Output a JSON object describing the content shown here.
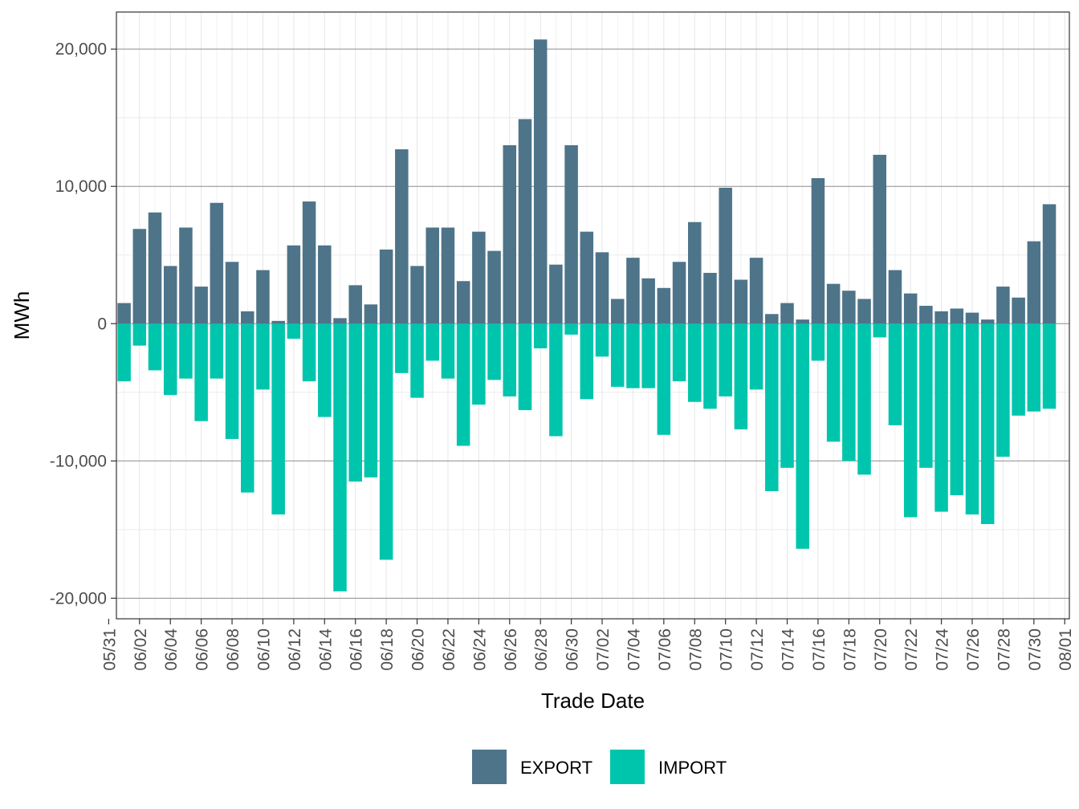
{
  "chart_data": {
    "type": "bar",
    "title": "",
    "xlabel": "Trade Date",
    "ylabel": "MWh",
    "ylim": [
      -21500,
      22700
    ],
    "x_tick_labels": [
      "05/31",
      "06/02",
      "06/04",
      "06/06",
      "06/08",
      "06/10",
      "06/12",
      "06/14",
      "06/16",
      "06/18",
      "06/20",
      "06/22",
      "06/24",
      "06/26",
      "06/28",
      "06/30",
      "07/02",
      "07/04",
      "07/06",
      "07/08",
      "07/10",
      "07/12",
      "07/14",
      "07/16",
      "07/18",
      "07/20",
      "07/22",
      "07/24",
      "07/26",
      "07/28",
      "07/30",
      "08/01"
    ],
    "y_ticks": [
      20000,
      10000,
      0,
      -10000,
      -20000
    ],
    "y_tick_labels": [
      "20,000",
      "10,000",
      "0",
      "-10,000",
      "-20,000"
    ],
    "legend_position": "bottom",
    "categories": [
      "06/01",
      "06/02",
      "06/03",
      "06/04",
      "06/05",
      "06/06",
      "06/07",
      "06/08",
      "06/09",
      "06/10",
      "06/11",
      "06/12",
      "06/13",
      "06/14",
      "06/15",
      "06/16",
      "06/17",
      "06/18",
      "06/19",
      "06/20",
      "06/21",
      "06/22",
      "06/23",
      "06/24",
      "06/25",
      "06/26",
      "06/27",
      "06/28",
      "06/29",
      "06/30",
      "07/01",
      "07/02",
      "07/03",
      "07/04",
      "07/05",
      "07/06",
      "07/07",
      "07/08",
      "07/09",
      "07/10",
      "07/11",
      "07/12",
      "07/13",
      "07/14",
      "07/15",
      "07/16",
      "07/17",
      "07/18",
      "07/19",
      "07/20",
      "07/21",
      "07/22",
      "07/23",
      "07/24",
      "07/25",
      "07/26",
      "07/27",
      "07/28",
      "07/29",
      "07/30",
      "07/31"
    ],
    "series": [
      {
        "name": "EXPORT",
        "color": "#4e7489",
        "values": [
          1500,
          6900,
          8100,
          4200,
          7000,
          2700,
          8800,
          4500,
          900,
          3900,
          200,
          5700,
          8900,
          5700,
          400,
          2800,
          1400,
          5400,
          12700,
          4200,
          7000,
          7000,
          3100,
          6700,
          5300,
          13000,
          14900,
          20700,
          4300,
          13000,
          6700,
          5200,
          1800,
          4800,
          3300,
          2600,
          4500,
          7400,
          3700,
          9900,
          3200,
          4800,
          700,
          1500,
          300,
          10600,
          2900,
          2400,
          1800,
          12300,
          3900,
          2200,
          1300,
          900,
          1100,
          800,
          300,
          2700,
          1900,
          6000,
          8700
        ]
      },
      {
        "name": "IMPORT",
        "color": "#00c5ad",
        "values": [
          -4200,
          -1600,
          -3400,
          -5200,
          -4000,
          -7100,
          -4000,
          -8400,
          -12300,
          -4800,
          -13900,
          -1100,
          -4200,
          -6800,
          -19500,
          -11500,
          -11200,
          -17200,
          -3600,
          -5400,
          -2700,
          -4000,
          -8900,
          -5900,
          -4100,
          -5300,
          -6300,
          -1800,
          -8200,
          -800,
          -5500,
          -2400,
          -4600,
          -4700,
          -4700,
          -8100,
          -4200,
          -5700,
          -6200,
          -5300,
          -7700,
          -4800,
          -12200,
          -10500,
          -16400,
          -2700,
          -8600,
          -10000,
          -11000,
          -1000,
          -7400,
          -14100,
          -10500,
          -13700,
          -12500,
          -13900,
          -14600,
          -9700,
          -6700,
          -6400,
          -6200
        ]
      }
    ]
  }
}
